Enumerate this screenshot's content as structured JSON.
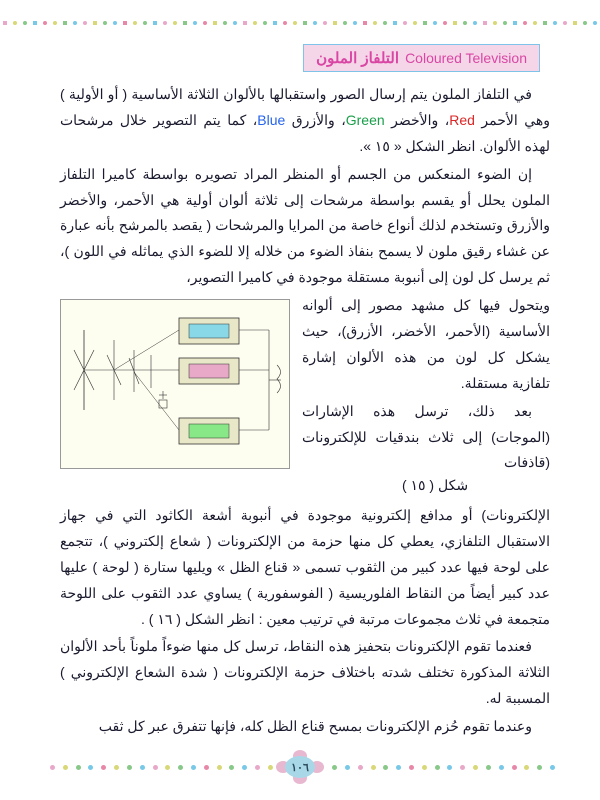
{
  "header": {
    "arabic": "التلفاز الملون",
    "english": "Coloured Television"
  },
  "colors": {
    "red_word": "Red",
    "green_word": "Green",
    "blue_word": "Blue",
    "pattern": [
      "#e8a8c8",
      "#d8d878",
      "#88c888",
      "#78c8e8",
      "#e888a8",
      "#d8d878",
      "#88c888",
      "#78c8e8"
    ]
  },
  "paragraphs": {
    "p1_a": "في التلفاز الملون يتم إرسال الصور واستقبالها بالألوان الثلاثة الأساسية ( أو الأولية ) وهي الأحمر ",
    "p1_b": "، والأخضر ",
    "p1_c": "، والأزرق ",
    "p1_d": "، كما يتم التصوير خلال مرشحات لهذه الألوان. انظر الشكل « ١٥ ».",
    "p2": "إن الضوء المنعكس من الجسم أو المنظر المراد تصويره بواسطة كاميرا التلفاز الملون يحلل أو يقسم بواسطة مرشحات إلى ثلاثة ألوان أولية هي الأحمر، والأخضر والأزرق وتستخدم لذلك أنواع خاصة من المرايا والمرشحات ( يقصد بالمرشح بأنه عبارة عن غشاء رقيق ملون لا يسمح بنفاذ الضوء من خلاله إلا للضوء الذي يماثله في اللون )، ثم يرسل كل لون إلى أنبوبة مستقلة موجودة في كاميرا التصوير،",
    "p3": "ويتحول فيها كل مشهد مصور إلى ألوانه الأساسية (الأحمر، الأخضر، الأزرق)، حيث يشكل كل لون من هذه الألوان إشارة تلفازية مستقلة.",
    "p3b": "بعد ذلك، ترسل هذه الإشارات (الموجات) إلى ثلاث بندقيات للإلكترونات (قاذفات",
    "p4": "الإلكترونات) أو مدافع إلكترونية موجودة في أنبوبة أشعة الكاثود التي في جهاز الاستقبال التلفازي، يعطي كل منها حزمة من الإلكترونات ( شعاع إلكتروني )، تتجمع على لوحة فيها عدد كبير من الثقوب تسمى « قناع الظل » ويليها ستارة ( لوحة ) عليها عدد كبير أيضاً من النقاط الفلوريسية ( الفوسفورية ) يساوي عدد الثقوب على اللوحة متجمعة في ثلاث مجموعات مرتبة في ترتيب معين : انظر الشكل ( ١٦ ) .",
    "p5": "فعندما تقوم الإلكترونات بتحفيز هذه النقاط، ترسل كل منها ضوءاً ملوناً بأحد الألوان الثلاثة المذكورة تختلف شدته باختلاف حزمة الإلكترونات ( شدة الشعاع الإلكتروني ) المسببة له.",
    "p6": "وعندما تقوم حُزم الإلكترونات بمسح قناع الظل كله، فإنها تتفرق عبر كل ثقب"
  },
  "figure": {
    "caption": "شكل ( ١٥ )"
  },
  "page_number": "١٠٦"
}
